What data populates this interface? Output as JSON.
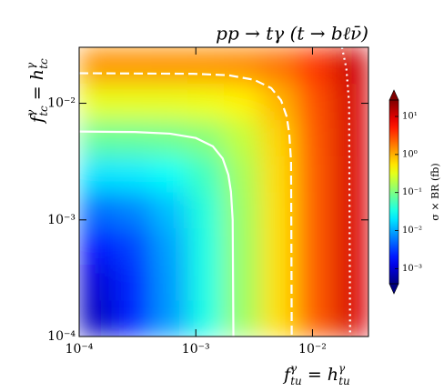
{
  "chart_data": {
    "type": "heatmap",
    "title": "pp → tγ (t → bℓν̄)",
    "xlabel": [
      "f",
      "γ",
      "tu",
      " = ",
      "h",
      "γ",
      "tu"
    ],
    "ylabel": [
      "f",
      "γ",
      "tc",
      " = ",
      "h",
      "γ",
      "tc"
    ],
    "colorbar_label": "σ × BR (fb)",
    "log_x": true,
    "log_y": true,
    "xlim": [
      0.0001,
      0.0302
    ],
    "ylim": [
      0.0001,
      0.0302
    ],
    "xticks": [
      {
        "value": 0.0001,
        "label": "10⁻⁴"
      },
      {
        "value": 0.001,
        "label": "10⁻³"
      },
      {
        "value": 0.01,
        "label": "10⁻²"
      }
    ],
    "yticks": [
      {
        "value": 0.0001,
        "label": "10⁻⁴"
      },
      {
        "value": 0.001,
        "label": "10⁻³"
      },
      {
        "value": 0.01,
        "label": "10⁻²"
      }
    ],
    "x_edges": [
      0.0001,
      0.000204,
      0.000417,
      0.000851,
      0.00174,
      0.00355,
      0.00724,
      0.0148,
      0.0302
    ],
    "y_edges": [
      0.0001,
      0.000204,
      0.000417,
      0.000851,
      0.00174,
      0.00355,
      0.00724,
      0.0148,
      0.0302
    ],
    "z": [
      [
        0.00082,
        0.00229,
        0.00842,
        0.034,
        0.14,
        0.583,
        2.43,
        10.1
      ],
      [
        0.00102,
        0.00249,
        0.00862,
        0.0342,
        0.141,
        0.584,
        2.43,
        10.1
      ],
      [
        0.00184,
        0.00331,
        0.00944,
        0.035,
        0.141,
        0.584,
        2.43,
        10.1
      ],
      [
        0.00526,
        0.00673,
        0.0129,
        0.0384,
        0.145,
        0.588,
        2.43,
        10.1
      ],
      [
        0.0196,
        0.021,
        0.0272,
        0.0527,
        0.159,
        0.602,
        2.45,
        10.1
      ],
      [
        0.0789,
        0.0803,
        0.0865,
        0.112,
        0.218,
        0.661,
        2.51,
        10.2
      ],
      [
        0.325,
        0.327,
        0.333,
        0.359,
        0.465,
        0.908,
        2.76,
        10.4
      ],
      [
        1.36,
        1.36,
        1.37,
        1.39,
        1.5,
        1.94,
        3.79,
        11.5
      ]
    ],
    "colormap": "jet",
    "zlim": [
      0.0004,
      27
    ],
    "colorbar_extend": "both",
    "zticks": [
      {
        "value": 10,
        "label": "10¹"
      },
      {
        "value": 1,
        "label": "10⁰"
      },
      {
        "value": 0.1,
        "label": "10⁻¹"
      },
      {
        "value": 0.01,
        "label": "10⁻²"
      },
      {
        "value": 0.001,
        "label": "10⁻³"
      }
    ],
    "contours": [
      {
        "style": "solid",
        "color": "#ffffff",
        "x": [
          0.0001,
          0.0003,
          0.0006,
          0.001,
          0.0014,
          0.0017,
          0.0019,
          0.002,
          0.00207,
          0.0021
        ],
        "y": [
          0.00572,
          0.00567,
          0.00549,
          0.00504,
          0.00427,
          0.00336,
          0.00244,
          0.00175,
          0.001,
          0.0001
        ]
      },
      {
        "style": "dashed",
        "color": "#ffffff",
        "x": [
          0.0001,
          0.00095,
          0.0019,
          0.00316,
          0.00443,
          0.00538,
          0.00601,
          0.00632,
          0.00655,
          0.00664
        ],
        "y": [
          0.0181,
          0.0179,
          0.0174,
          0.0159,
          0.0135,
          0.0106,
          0.0077,
          0.0055,
          0.0032,
          0.0001
        ]
      },
      {
        "style": "dotted",
        "color": "#ffffff",
        "x": [
          0.0179,
          0.0195,
          0.0206,
          0.021
        ],
        "y": [
          0.0302,
          0.02,
          0.01,
          0.0001
        ]
      }
    ]
  }
}
